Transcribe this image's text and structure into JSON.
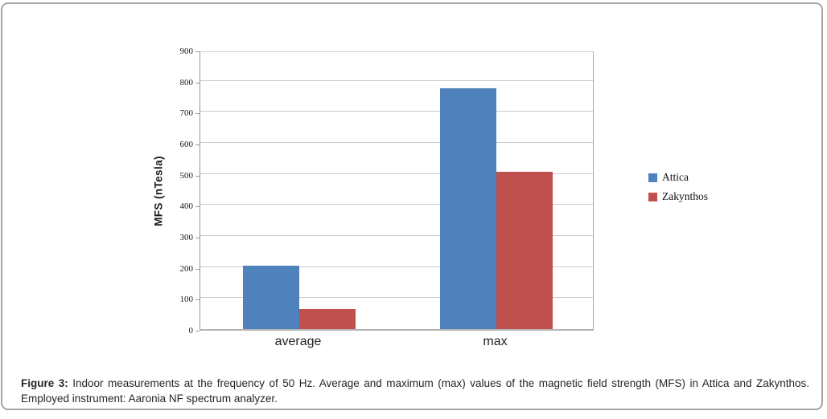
{
  "chart_data": {
    "type": "bar",
    "title": "",
    "categories": [
      "average",
      "max"
    ],
    "series": [
      {
        "name": "Attica",
        "color": "#4F81BD",
        "values": [
          205,
          775
        ]
      },
      {
        "name": "Zakynthos",
        "color": "#C0504D",
        "values": [
          65,
          507
        ]
      }
    ],
    "xlabel": "",
    "ylabel": "MFS (nTesla)",
    "ylim": [
      0,
      900
    ],
    "yticks": [
      0,
      100,
      200,
      300,
      400,
      500,
      600,
      700,
      800,
      900
    ],
    "grid": true,
    "legend_position": "right",
    "units": "nTesla"
  },
  "caption": {
    "prefix": "Figure 3:",
    "text": " Indoor measurements at the frequency of 50 Hz. Average and maximum (max) values of the magnetic field strength (MFS) in Attica and Zakynthos. Employed instrument: Aaronia NF spectrum analyzer."
  },
  "colors": {
    "card_border": "#a5a5a5",
    "gridline": "#c9c9c9",
    "axis_line": "#979797"
  }
}
